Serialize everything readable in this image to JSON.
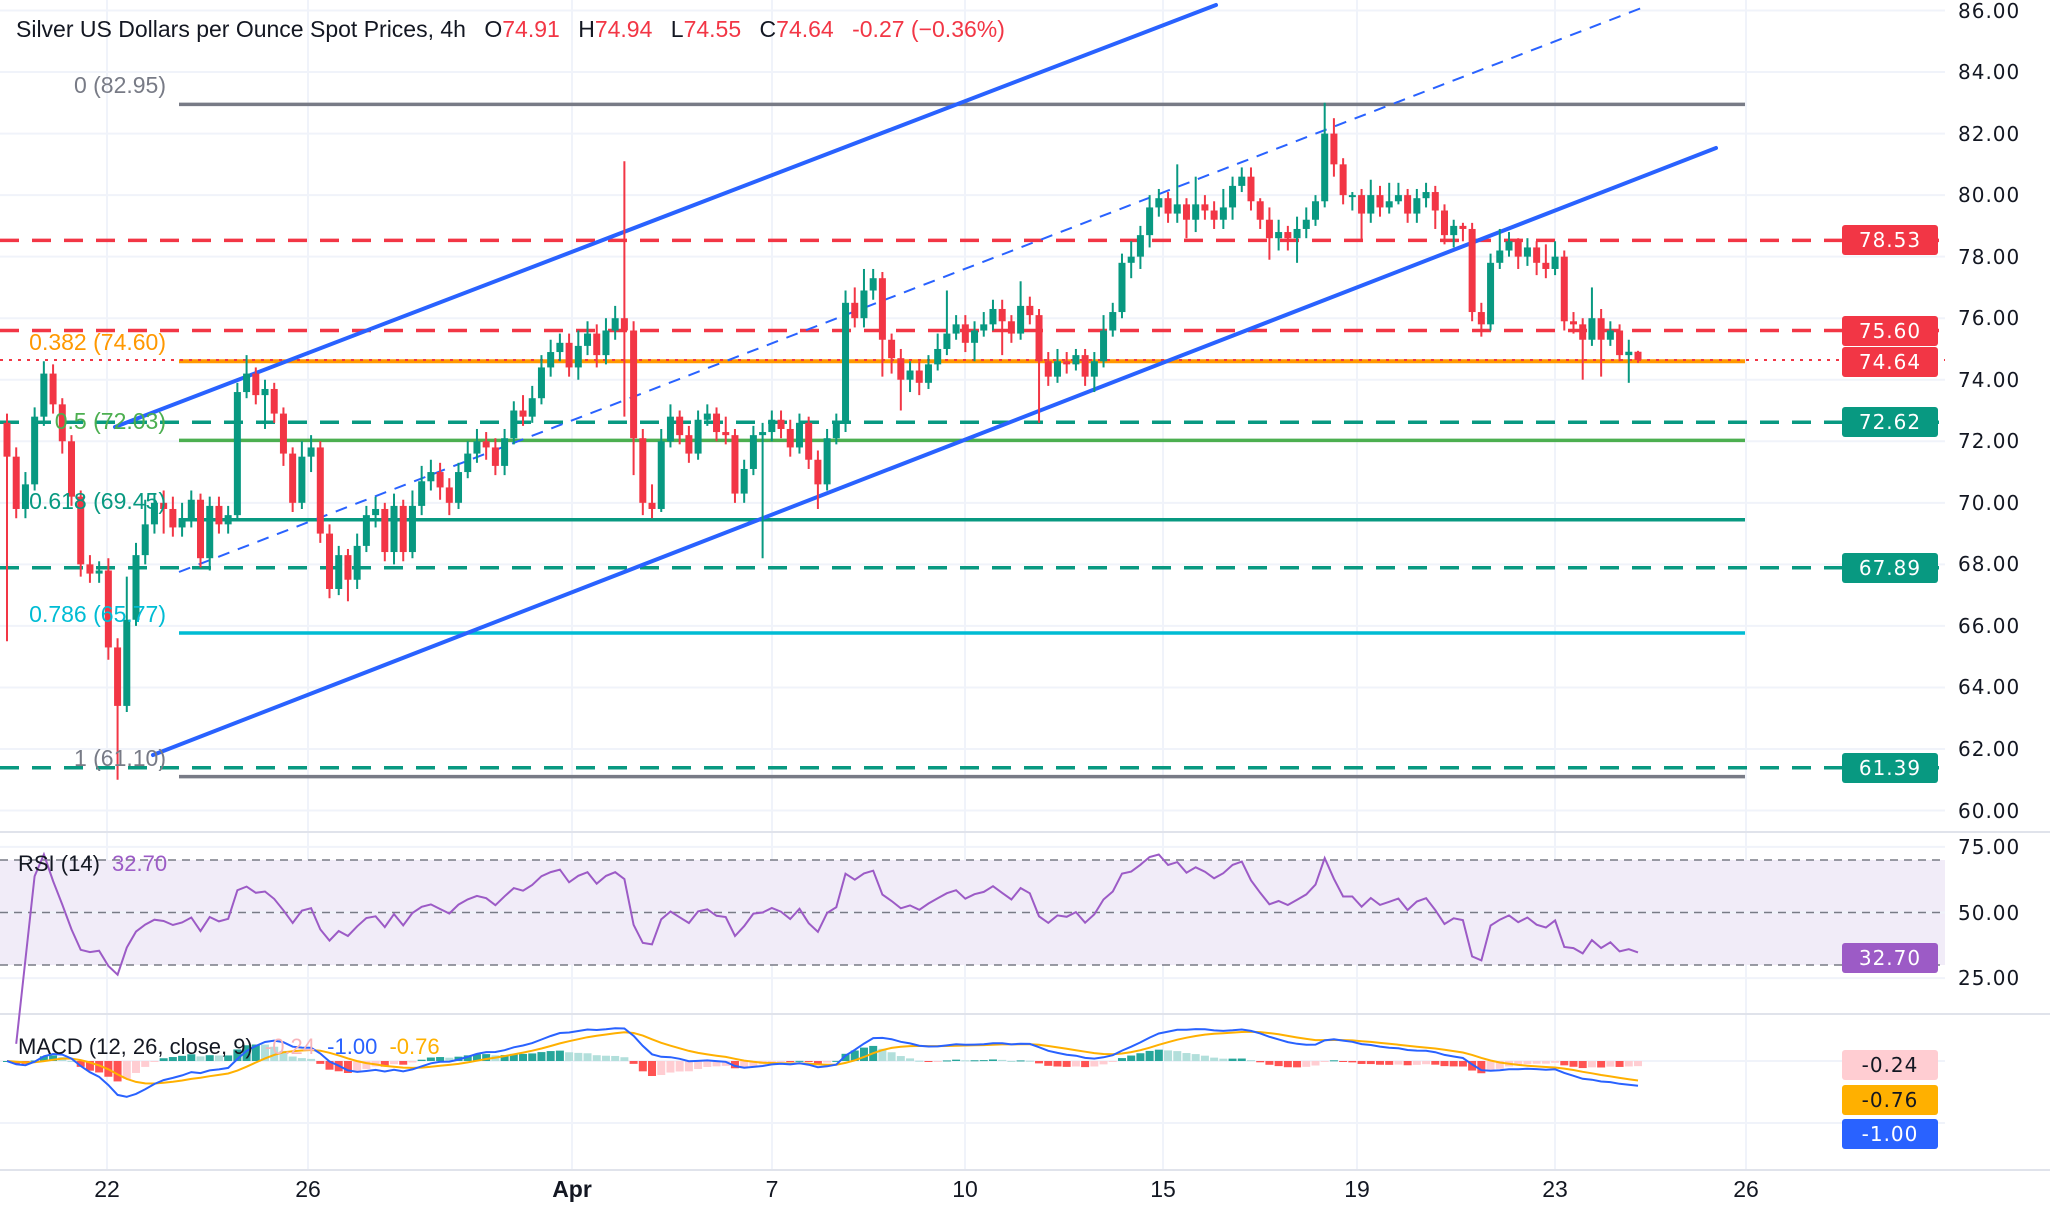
{
  "header": {
    "title": "Silver US Dollars per Ounce Spot Prices, 4h",
    "o_label": "O",
    "o": "74.91",
    "h_label": "H",
    "h": "74.94",
    "l_label": "L",
    "l": "74.55",
    "c_label": "C",
    "c": "74.64",
    "change": "-0.27 (−0.36%)"
  },
  "colors": {
    "up": "#089981",
    "down": "#F23645",
    "channel": "#2962FF",
    "fib_0": "#787B86",
    "fib_0382": "#FF9800",
    "fib_05": "#4CAF50",
    "fib_0618": "#089981",
    "fib_0786": "#00BCD4",
    "fib_1": "#787B86",
    "resistance": "#F23645",
    "support": "#089981",
    "rsi": "#9C5BC6",
    "rsi_band": "#F1ECF8",
    "macd": "#2962FF",
    "signal": "#FFB000",
    "hist_up_strong": "#26A69A",
    "hist_up_weak": "#B2DFDB",
    "hist_down_strong": "#FF5252",
    "hist_down_weak": "#FFCDD2"
  },
  "price_axis": {
    "ticks": [
      "86.00",
      "84.00",
      "82.00",
      "80.00",
      "78.00",
      "76.00",
      "74.00",
      "72.00",
      "70.00",
      "68.00",
      "66.00",
      "64.00",
      "62.00",
      "60.00"
    ]
  },
  "time_axis": {
    "labels": [
      "22",
      "26",
      "Apr",
      "7",
      "10",
      "15",
      "19",
      "23",
      "26"
    ]
  },
  "fibonacci": [
    {
      "ratio": 0,
      "price": 82.95,
      "label": "0 (82.95)",
      "color": "#787B86"
    },
    {
      "ratio": 0.382,
      "price": 74.6,
      "label": "0.382 (74.60)",
      "color": "#FF9800"
    },
    {
      "ratio": 0.5,
      "price": 72.03,
      "label": "0.5 (72.03)",
      "color": "#4CAF50"
    },
    {
      "ratio": 0.618,
      "price": 69.45,
      "label": "0.618 (69.45)",
      "color": "#089981"
    },
    {
      "ratio": 0.786,
      "price": 65.77,
      "label": "0.786 (65.77)",
      "color": "#00BCD4"
    },
    {
      "ratio": 1,
      "price": 61.1,
      "label": "1 (61.10)",
      "color": "#787B86"
    }
  ],
  "horizontal_levels": [
    {
      "price": 78.53,
      "label": "78.53",
      "color": "#F23645"
    },
    {
      "price": 75.6,
      "label": "75.60",
      "color": "#F23645"
    },
    {
      "price": 72.62,
      "label": "72.62",
      "color": "#089981"
    },
    {
      "price": 67.89,
      "label": "67.89",
      "color": "#089981"
    },
    {
      "price": 61.39,
      "label": "61.39",
      "color": "#089981"
    }
  ],
  "last_price": {
    "price": 74.64,
    "label": "74.64",
    "color": "#F23645"
  },
  "rsi": {
    "title": "RSI (14)",
    "period": 14,
    "value": "32.70",
    "value_num": 32.7,
    "upper": 70,
    "middle": 50,
    "lower": 30,
    "ticks": [
      "75.00",
      "50.00",
      "25.00"
    ]
  },
  "macd": {
    "title": "MACD (12, 26, close, 9)",
    "fast": 12,
    "slow": 26,
    "signal": 9,
    "histogram_value": "-0.24",
    "macd_value": "-1.00",
    "signal_value": "-0.76"
  },
  "chart_data": {
    "type": "candlestick",
    "timeframe": "4h",
    "title": "Silver US Dollars per Ounce Spot Prices, 4h",
    "ylim": [
      60,
      86
    ],
    "x_tick_labels": [
      "22",
      "26",
      "Apr",
      "7",
      "10",
      "15",
      "19",
      "23",
      "26"
    ],
    "grid": true,
    "candles_ohlc": [
      [
        72.6,
        72.9,
        65.5,
        71.5
      ],
      [
        71.5,
        71.8,
        69.5,
        69.8
      ],
      [
        69.8,
        71.0,
        69.5,
        70.6
      ],
      [
        70.6,
        73.1,
        70.4,
        72.8
      ],
      [
        72.8,
        74.6,
        72.5,
        74.2
      ],
      [
        74.2,
        74.5,
        72.9,
        73.2
      ],
      [
        73.2,
        73.4,
        71.6,
        72.0
      ],
      [
        72.0,
        72.2,
        69.9,
        70.2
      ],
      [
        70.2,
        70.4,
        67.6,
        68.0
      ],
      [
        68.0,
        68.3,
        67.4,
        67.7
      ],
      [
        67.7,
        68.1,
        67.4,
        67.8
      ],
      [
        67.8,
        68.2,
        64.9,
        65.3
      ],
      [
        65.3,
        65.6,
        61.0,
        63.4
      ],
      [
        63.4,
        67.6,
        63.2,
        66.2
      ],
      [
        66.2,
        68.7,
        66.0,
        68.3
      ],
      [
        68.3,
        70.1,
        68.0,
        69.3
      ],
      [
        69.3,
        70.3,
        69.0,
        70.0
      ],
      [
        70.0,
        70.4,
        69.0,
        69.8
      ],
      [
        69.8,
        70.2,
        68.9,
        69.2
      ],
      [
        69.2,
        70.0,
        68.9,
        69.5
      ],
      [
        69.5,
        70.4,
        69.2,
        70.1
      ],
      [
        70.1,
        70.3,
        67.9,
        68.2
      ],
      [
        68.2,
        70.2,
        67.8,
        69.9
      ],
      [
        69.9,
        70.2,
        69.0,
        69.3
      ],
      [
        69.3,
        69.9,
        69.0,
        69.6
      ],
      [
        69.6,
        73.9,
        69.4,
        73.6
      ],
      [
        73.6,
        74.8,
        73.4,
        74.2
      ],
      [
        74.2,
        74.4,
        73.2,
        73.5
      ],
      [
        73.5,
        74.0,
        72.4,
        73.7
      ],
      [
        73.7,
        73.9,
        72.6,
        72.9
      ],
      [
        72.9,
        73.1,
        71.2,
        71.6
      ],
      [
        71.6,
        71.8,
        69.7,
        70.0
      ],
      [
        70.0,
        72.0,
        69.8,
        71.5
      ],
      [
        71.5,
        72.2,
        71.0,
        71.8
      ],
      [
        71.8,
        72.0,
        68.7,
        69.0
      ],
      [
        69.0,
        69.3,
        66.9,
        67.2
      ],
      [
        67.2,
        68.6,
        67.0,
        68.3
      ],
      [
        68.3,
        68.5,
        66.8,
        67.5
      ],
      [
        67.5,
        69.0,
        67.2,
        68.6
      ],
      [
        68.6,
        69.9,
        68.4,
        69.6
      ],
      [
        69.6,
        70.2,
        69.2,
        69.8
      ],
      [
        69.8,
        70.0,
        68.1,
        68.4
      ],
      [
        68.4,
        70.3,
        68.0,
        69.9
      ],
      [
        69.9,
        70.1,
        68.1,
        68.4
      ],
      [
        68.4,
        70.4,
        68.2,
        69.9
      ],
      [
        69.9,
        71.2,
        69.6,
        70.7
      ],
      [
        70.7,
        71.4,
        70.4,
        71.0
      ],
      [
        71.0,
        71.3,
        70.1,
        70.5
      ],
      [
        70.5,
        70.8,
        69.6,
        70.0
      ],
      [
        70.0,
        71.3,
        69.8,
        71.0
      ],
      [
        71.0,
        72.0,
        70.8,
        71.6
      ],
      [
        71.6,
        72.4,
        71.3,
        72.0
      ],
      [
        72.0,
        72.3,
        71.4,
        71.8
      ],
      [
        71.8,
        72.1,
        70.9,
        71.2
      ],
      [
        71.2,
        72.4,
        70.9,
        72.1
      ],
      [
        72.1,
        73.3,
        71.9,
        73.0
      ],
      [
        73.0,
        73.5,
        72.5,
        72.8
      ],
      [
        72.8,
        73.8,
        72.6,
        73.4
      ],
      [
        73.4,
        74.8,
        73.2,
        74.4
      ],
      [
        74.4,
        75.3,
        74.1,
        74.9
      ],
      [
        74.9,
        75.5,
        74.6,
        75.2
      ],
      [
        75.2,
        75.5,
        74.1,
        74.4
      ],
      [
        74.4,
        75.6,
        74.0,
        75.1
      ],
      [
        75.1,
        75.9,
        74.8,
        75.5
      ],
      [
        75.5,
        75.8,
        74.4,
        74.8
      ],
      [
        74.8,
        76.0,
        74.5,
        75.6
      ],
      [
        75.6,
        76.4,
        75.3,
        76.0
      ],
      [
        76.0,
        81.1,
        72.8,
        75.6
      ],
      [
        75.6,
        75.9,
        70.9,
        72.1
      ],
      [
        72.1,
        72.4,
        69.6,
        70.0
      ],
      [
        70.0,
        70.6,
        69.5,
        69.8
      ],
      [
        69.8,
        72.4,
        69.7,
        72.0
      ],
      [
        72.0,
        73.2,
        71.8,
        72.8
      ],
      [
        72.8,
        73.0,
        71.9,
        72.2
      ],
      [
        72.2,
        72.5,
        71.3,
        71.6
      ],
      [
        71.6,
        73.0,
        71.4,
        72.7
      ],
      [
        72.7,
        73.2,
        72.5,
        72.9
      ],
      [
        72.9,
        73.1,
        72.0,
        72.3
      ],
      [
        72.3,
        72.8,
        71.9,
        72.2
      ],
      [
        72.2,
        72.4,
        70.0,
        70.3
      ],
      [
        70.3,
        71.4,
        70.0,
        71.1
      ],
      [
        71.1,
        72.5,
        70.9,
        72.2
      ],
      [
        72.2,
        72.6,
        68.2,
        72.3
      ],
      [
        72.3,
        73.0,
        72.0,
        72.7
      ],
      [
        72.7,
        73.0,
        72.1,
        72.4
      ],
      [
        72.4,
        72.7,
        71.5,
        71.8
      ],
      [
        71.8,
        72.9,
        71.6,
        72.6
      ],
      [
        72.6,
        72.8,
        71.1,
        71.4
      ],
      [
        71.4,
        71.7,
        69.8,
        70.6
      ],
      [
        70.6,
        72.4,
        70.4,
        72.1
      ],
      [
        72.1,
        72.9,
        71.9,
        72.6
      ],
      [
        72.6,
        76.9,
        72.3,
        76.5
      ],
      [
        76.5,
        77.0,
        75.7,
        76.0
      ],
      [
        76.0,
        77.6,
        75.7,
        76.9
      ],
      [
        76.9,
        77.6,
        76.6,
        77.3
      ],
      [
        77.3,
        77.5,
        74.1,
        75.3
      ],
      [
        75.3,
        75.5,
        74.2,
        74.7
      ],
      [
        74.7,
        75.0,
        73.0,
        74.0
      ],
      [
        74.0,
        74.6,
        73.6,
        74.3
      ],
      [
        74.3,
        74.6,
        73.5,
        73.9
      ],
      [
        73.9,
        74.8,
        73.7,
        74.5
      ],
      [
        74.5,
        75.5,
        74.3,
        75.0
      ],
      [
        75.0,
        76.9,
        74.8,
        75.5
      ],
      [
        75.5,
        76.1,
        75.3,
        75.8
      ],
      [
        75.8,
        76.1,
        74.9,
        75.2
      ],
      [
        75.2,
        75.9,
        74.6,
        75.6
      ],
      [
        75.6,
        76.2,
        75.4,
        75.8
      ],
      [
        75.8,
        76.6,
        75.6,
        76.3
      ],
      [
        76.3,
        76.6,
        74.8,
        75.9
      ],
      [
        75.9,
        76.1,
        75.2,
        75.5
      ],
      [
        75.5,
        77.2,
        75.3,
        76.4
      ],
      [
        76.4,
        76.7,
        75.8,
        76.1
      ],
      [
        76.1,
        76.3,
        72.6,
        74.6
      ],
      [
        74.6,
        74.9,
        73.8,
        74.1
      ],
      [
        74.1,
        75.0,
        73.9,
        74.6
      ],
      [
        74.6,
        74.9,
        74.2,
        74.5
      ],
      [
        74.5,
        75.0,
        74.3,
        74.8
      ],
      [
        74.8,
        75.0,
        73.8,
        74.1
      ],
      [
        74.1,
        74.9,
        73.6,
        74.6
      ],
      [
        74.6,
        76.1,
        74.4,
        75.6
      ],
      [
        75.6,
        76.5,
        75.4,
        76.2
      ],
      [
        76.2,
        78.1,
        76.0,
        77.8
      ],
      [
        77.8,
        78.5,
        77.3,
        78.0
      ],
      [
        78.0,
        79.0,
        77.6,
        78.7
      ],
      [
        78.7,
        80.0,
        78.3,
        79.6
      ],
      [
        79.6,
        80.2,
        79.3,
        79.9
      ],
      [
        79.9,
        80.1,
        79.1,
        79.4
      ],
      [
        79.4,
        81.0,
        79.1,
        79.7
      ],
      [
        79.7,
        79.9,
        78.6,
        79.2
      ],
      [
        79.2,
        80.6,
        78.8,
        79.7
      ],
      [
        79.7,
        80.0,
        79.2,
        79.5
      ],
      [
        79.5,
        79.8,
        78.9,
        79.2
      ],
      [
        79.2,
        80.2,
        78.9,
        79.6
      ],
      [
        79.6,
        80.6,
        79.2,
        80.3
      ],
      [
        80.3,
        80.9,
        80.1,
        80.6
      ],
      [
        80.6,
        80.9,
        79.5,
        79.8
      ],
      [
        79.8,
        79.9,
        78.9,
        79.2
      ],
      [
        79.2,
        79.6,
        77.9,
        78.6
      ],
      [
        78.6,
        79.2,
        78.2,
        78.8
      ],
      [
        78.8,
        79.0,
        78.2,
        78.6
      ],
      [
        78.6,
        79.3,
        77.8,
        78.9
      ],
      [
        78.9,
        79.6,
        78.6,
        79.2
      ],
      [
        79.2,
        80.0,
        79.0,
        79.8
      ],
      [
        79.8,
        83.0,
        79.6,
        82.0
      ],
      [
        82.0,
        82.5,
        80.6,
        81.0
      ],
      [
        81.0,
        81.2,
        79.7,
        80.0
      ],
      [
        80.0,
        80.1,
        79.5,
        80.0
      ],
      [
        80.0,
        80.2,
        78.5,
        79.4
      ],
      [
        79.4,
        80.5,
        79.1,
        80.0
      ],
      [
        80.0,
        80.3,
        79.3,
        79.6
      ],
      [
        79.6,
        80.4,
        79.4,
        79.8
      ],
      [
        79.8,
        80.4,
        79.7,
        80.0
      ],
      [
        80.0,
        80.2,
        79.1,
        79.4
      ],
      [
        79.4,
        80.2,
        79.1,
        79.9
      ],
      [
        79.9,
        80.4,
        79.6,
        80.1
      ],
      [
        80.1,
        80.3,
        78.9,
        79.5
      ],
      [
        79.5,
        79.7,
        78.4,
        78.7
      ],
      [
        78.7,
        79.2,
        78.3,
        79.0
      ],
      [
        79.0,
        79.1,
        78.5,
        78.9
      ],
      [
        78.9,
        79.1,
        75.9,
        76.2
      ],
      [
        76.2,
        76.5,
        75.4,
        75.8
      ],
      [
        75.8,
        78.1,
        75.6,
        77.8
      ],
      [
        77.8,
        78.9,
        77.6,
        78.2
      ],
      [
        78.2,
        78.8,
        78.0,
        78.5
      ],
      [
        78.5,
        78.6,
        77.6,
        78.0
      ],
      [
        78.0,
        78.6,
        77.7,
        78.3
      ],
      [
        78.3,
        78.5,
        77.4,
        77.8
      ],
      [
        77.8,
        78.4,
        77.3,
        77.6
      ],
      [
        77.6,
        78.5,
        77.4,
        78.0
      ],
      [
        78.0,
        78.2,
        75.6,
        75.9
      ],
      [
        75.9,
        76.2,
        75.5,
        75.8
      ],
      [
        75.8,
        76.0,
        74.0,
        75.3
      ],
      [
        75.3,
        77.0,
        75.1,
        76.0
      ],
      [
        76.0,
        76.3,
        74.1,
        75.3
      ],
      [
        75.3,
        75.9,
        75.1,
        75.6
      ],
      [
        75.6,
        75.8,
        74.6,
        74.8
      ],
      [
        74.8,
        75.3,
        73.9,
        74.91
      ],
      [
        74.91,
        74.94,
        74.55,
        74.64
      ]
    ]
  }
}
